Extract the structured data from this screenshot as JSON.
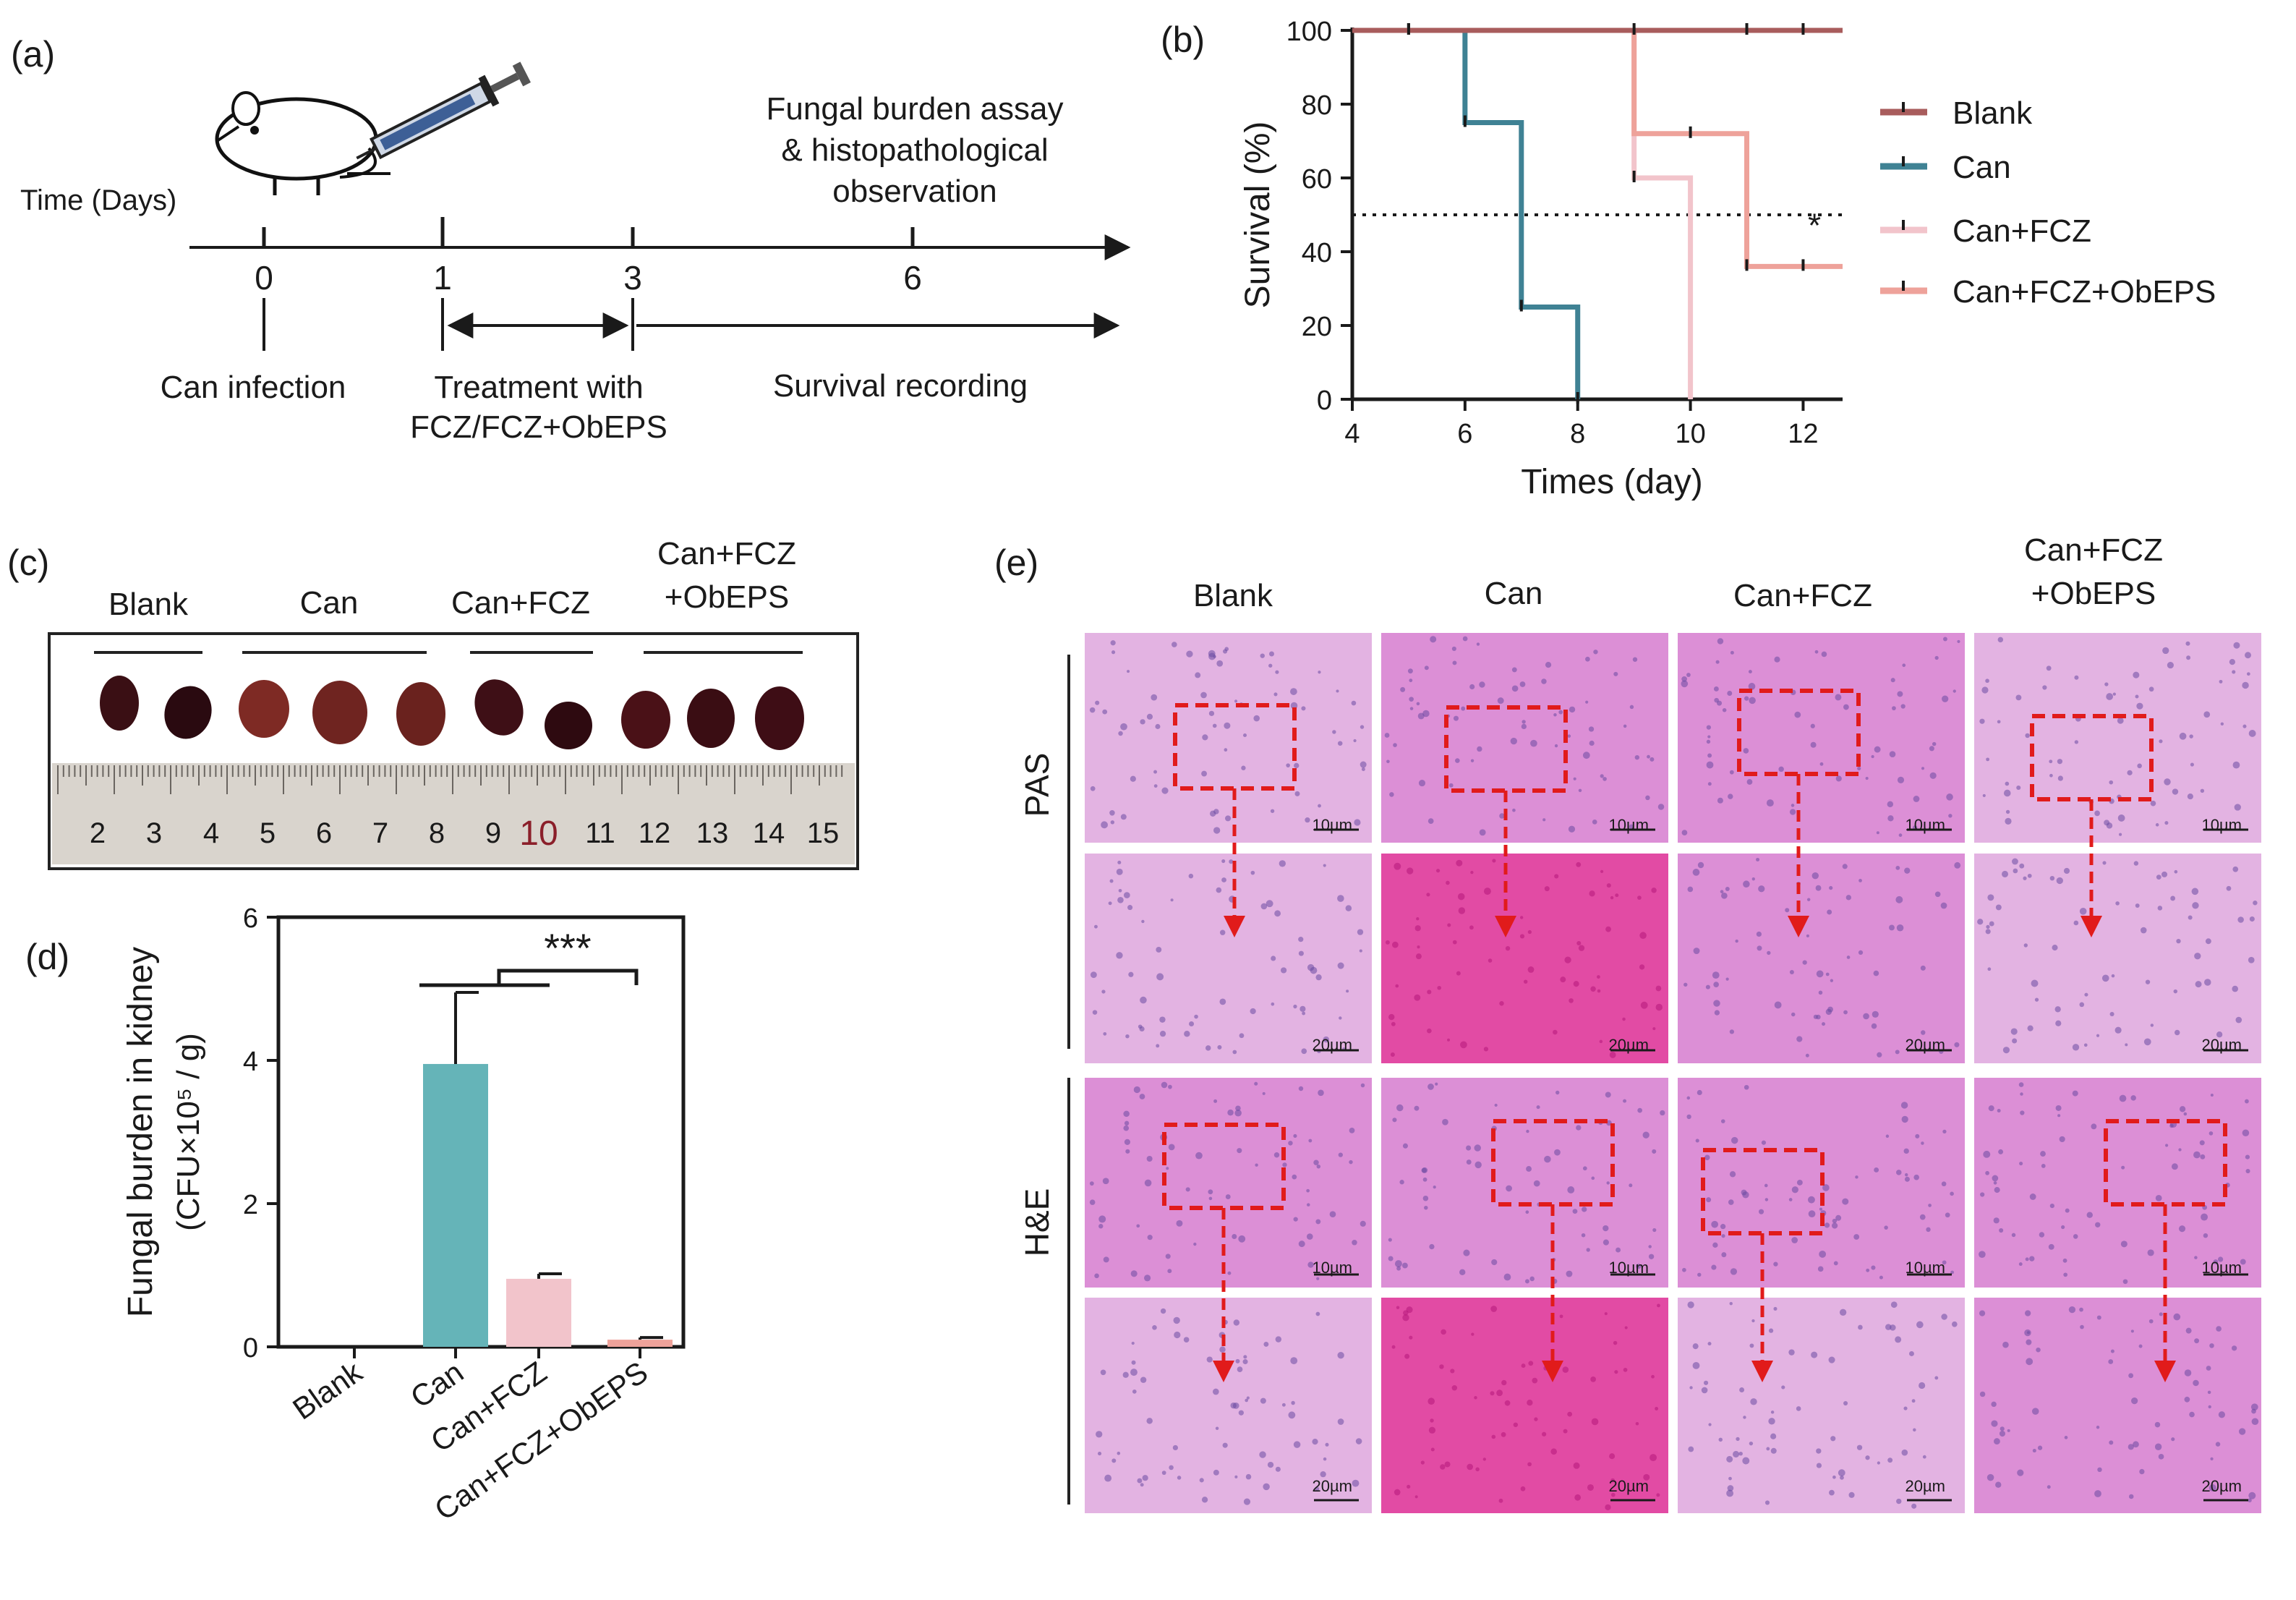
{
  "panels": {
    "a": {
      "letter": "(a)",
      "axis_title": "Time (Days)",
      "ticks": [
        "0",
        "1",
        "3",
        "6"
      ],
      "top_note": [
        "Fungal burden assay",
        "& histopathological",
        "observation"
      ],
      "events": [
        "Can infection",
        "Treatment with",
        "FCZ/FCZ+ObEPS",
        "Survival recording"
      ]
    },
    "b": {
      "letter": "(b)"
    },
    "c": {
      "letter": "(c)",
      "groups": [
        "Blank",
        "Can",
        "Can+FCZ",
        "Can+FCZ",
        "+ObEPS"
      ],
      "ruler": [
        "2",
        "3",
        "4",
        "5",
        "6",
        "7",
        "8",
        "9",
        "10",
        "11",
        "12",
        "13",
        "14",
        "15"
      ]
    },
    "d": {
      "letter": "(d)"
    },
    "e": {
      "letter": "(e)",
      "columns": [
        "Blank",
        "Can",
        "Can+FCZ",
        "Can+FCZ",
        "+ObEPS"
      ],
      "rows": [
        "PAS",
        "H&E"
      ],
      "scale_top": "10µm",
      "scale_bottom": "20µm"
    }
  },
  "colors": {
    "blank": "#a85c5c",
    "can": "#3f8294",
    "can_fcz": "#f2c4cb",
    "can_fcz_obeps": "#eea29a",
    "bar_can": "#65b4b8",
    "tissue_light": "#e3b3e2",
    "tissue_mid": "#dc8fd6",
    "tissue_deep": "#e24ba4",
    "dashed_box": "#e11b1b"
  },
  "chart_data": [
    {
      "type": "line",
      "step": true,
      "title": "",
      "xlabel": "Times (day)",
      "ylabel": "Survival (%)",
      "xlim": [
        4,
        12.7
      ],
      "ylim": [
        0,
        100
      ],
      "xticks": [
        "4",
        "6",
        "8",
        "10",
        "12"
      ],
      "yticks": [
        "0",
        "20",
        "40",
        "60",
        "80",
        "100"
      ],
      "reference_line": 50,
      "annotation": "*",
      "legend_position": "right",
      "series": [
        {
          "name": "Blank",
          "x": [
            4,
            12.7
          ],
          "y": [
            100,
            100
          ],
          "censor_x": [
            5,
            9,
            11,
            12
          ]
        },
        {
          "name": "Can",
          "x": [
            4,
            6,
            7,
            8
          ],
          "y": [
            100,
            75,
            25,
            0
          ],
          "censor_x": [
            5,
            6,
            7,
            8
          ]
        },
        {
          "name": "Can+FCZ",
          "x": [
            4,
            9,
            10
          ],
          "y": [
            100,
            60,
            0
          ],
          "censor_x": [
            5,
            9
          ]
        },
        {
          "name": "Can+FCZ+ObEPS",
          "x": [
            4,
            9,
            11,
            12.7
          ],
          "y": [
            100,
            72,
            36,
            36
          ],
          "censor_x": [
            5,
            10,
            11,
            12
          ]
        }
      ]
    },
    {
      "type": "bar",
      "title": "",
      "categories": [
        "Blank",
        "Can",
        "Can+FCZ",
        "Can+FCZ+ObEPS"
      ],
      "values": [
        0,
        3.95,
        0.95,
        0.1
      ],
      "errors": [
        0,
        1.0,
        0.07,
        0.03
      ],
      "ylabel": "Fungal burden in kidney",
      "ylabel2": "(CFU×10⁵ / g)",
      "xlabel": "",
      "ylim": [
        0,
        6
      ],
      "yticks": [
        "0",
        "2",
        "4",
        "6"
      ],
      "significance": "***"
    }
  ]
}
